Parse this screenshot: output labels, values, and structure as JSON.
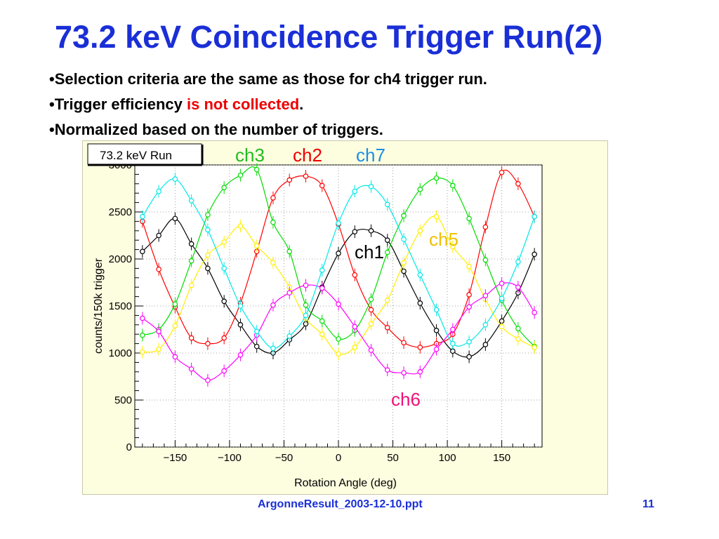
{
  "slide": {
    "title": "73.2 keV Coincidence Trigger Run(2)",
    "bullets": [
      {
        "segments": [
          {
            "text": "•Selection criteria are the same as those for ch4 trigger run.",
            "color": "#000000"
          }
        ]
      },
      {
        "segments": [
          {
            "text": "•Trigger efficiency ",
            "color": "#000000"
          },
          {
            "text": "is not collected",
            "color": "#ee0000"
          },
          {
            "text": ".",
            "color": "#000000"
          }
        ]
      },
      {
        "segments": [
          {
            "text": "•Normalized based on the number of triggers.",
            "color": "#000000"
          }
        ]
      }
    ],
    "footer": "ArgonneResult_2003-12-10.ppt",
    "page_number": "11"
  },
  "chart_data": {
    "type": "scatter",
    "title": "73.2 keV Run",
    "xlabel": "Rotation Angle (deg)",
    "ylabel": "counts/150k trigger",
    "xlim": [
      -187,
      187
    ],
    "ylim": [
      0,
      3000
    ],
    "x_ticks": [
      -150,
      -100,
      -50,
      0,
      50,
      100,
      150
    ],
    "y_ticks": [
      0,
      500,
      1000,
      1500,
      2000,
      2500,
      3000
    ],
    "grid": true,
    "error_bars": true,
    "x": [
      -180,
      -165,
      -150,
      -135,
      -120,
      -105,
      -90,
      -75,
      -60,
      -45,
      -30,
      -15,
      0,
      15,
      30,
      45,
      60,
      75,
      90,
      105,
      120,
      135,
      150,
      165,
      180
    ],
    "series": [
      {
        "name": "ch1",
        "color": "#000000",
        "values": [
          2080,
          2250,
          2430,
          2160,
          1900,
          1550,
          1300,
          1070,
          1000,
          1140,
          1310,
          1700,
          2060,
          2290,
          2300,
          2200,
          1870,
          1530,
          1240,
          1020,
          960,
          1090,
          1340,
          1640,
          2050
        ]
      },
      {
        "name": "ch2",
        "color": "#ff0000",
        "values": [
          2400,
          1890,
          1490,
          1160,
          1100,
          1160,
          1530,
          2080,
          2650,
          2840,
          2880,
          2780,
          2370,
          1830,
          1460,
          1270,
          1110,
          1060,
          1100,
          1200,
          1620,
          2340,
          2920,
          2800,
          2450
        ]
      },
      {
        "name": "ch3",
        "color": "#00dd00",
        "values": [
          1190,
          1250,
          1520,
          1980,
          2470,
          2760,
          2890,
          2950,
          2390,
          2080,
          1510,
          1340,
          1150,
          1240,
          1570,
          2070,
          2460,
          2740,
          2860,
          2780,
          2430,
          1990,
          1560,
          1260,
          1070
        ]
      },
      {
        "name": "ch5",
        "color": "#ffee00",
        "values": [
          1010,
          1040,
          1290,
          1720,
          2040,
          2180,
          2350,
          2140,
          1960,
          1700,
          1370,
          1200,
          990,
          1060,
          1310,
          1560,
          1960,
          2300,
          2450,
          2130,
          1920,
          1570,
          1280,
          1150,
          1060
        ]
      },
      {
        "name": "ch6",
        "color": "#ff00ff",
        "values": [
          1370,
          1230,
          960,
          830,
          710,
          810,
          980,
          1190,
          1510,
          1640,
          1720,
          1690,
          1520,
          1280,
          1030,
          820,
          790,
          800,
          1040,
          1250,
          1490,
          1610,
          1740,
          1700,
          1430
        ]
      },
      {
        "name": "ch7",
        "color": "#00e8e8",
        "values": [
          2450,
          2720,
          2850,
          2620,
          2310,
          1900,
          1500,
          1230,
          1050,
          1180,
          1400,
          1880,
          2380,
          2720,
          2770,
          2580,
          2210,
          1830,
          1460,
          1100,
          1120,
          1300,
          1580,
          1970,
          2450
        ]
      }
    ],
    "legend": [
      {
        "label": "ch3",
        "color": "#22bb22"
      },
      {
        "label": "ch2",
        "color": "#ee0000"
      },
      {
        "label": "ch7",
        "color": "#1a8fe6"
      },
      {
        "label": "ch5",
        "color": "#f0c000"
      },
      {
        "label": "ch1",
        "color": "#000000"
      },
      {
        "label": "ch6",
        "color": "#ee1177"
      }
    ]
  }
}
